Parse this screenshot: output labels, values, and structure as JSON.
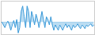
{
  "chart_data": {
    "type": "area",
    "values": [
      0,
      -0.5,
      -1,
      -0.3,
      0.2,
      -0.5,
      -1.5,
      -0.5,
      0.3,
      -1,
      0.5,
      -2,
      -1,
      2,
      3,
      1,
      -1,
      3,
      2,
      -1,
      2,
      1,
      -0.5,
      1.5,
      0.5,
      -1,
      0.5,
      2,
      0.5,
      -1,
      1,
      0.5,
      -0.5,
      1,
      -0.5,
      -1.5,
      -0.5,
      -1,
      -1.5,
      -0.5,
      -1,
      -1.5,
      -0.8,
      -0.3,
      -1,
      -0.5,
      -1,
      -1.5,
      -0.5,
      -1,
      -0.8,
      -0.3,
      -0.8,
      -1.2,
      -0.5,
      -0.8,
      -1.2,
      -0.5,
      -0.8,
      -0.5,
      -0.3,
      -0.8,
      -0.5
    ],
    "color": "#3a9ad9",
    "ylim": [
      -2.3,
      3.9
    ],
    "tick_labels": false
  }
}
